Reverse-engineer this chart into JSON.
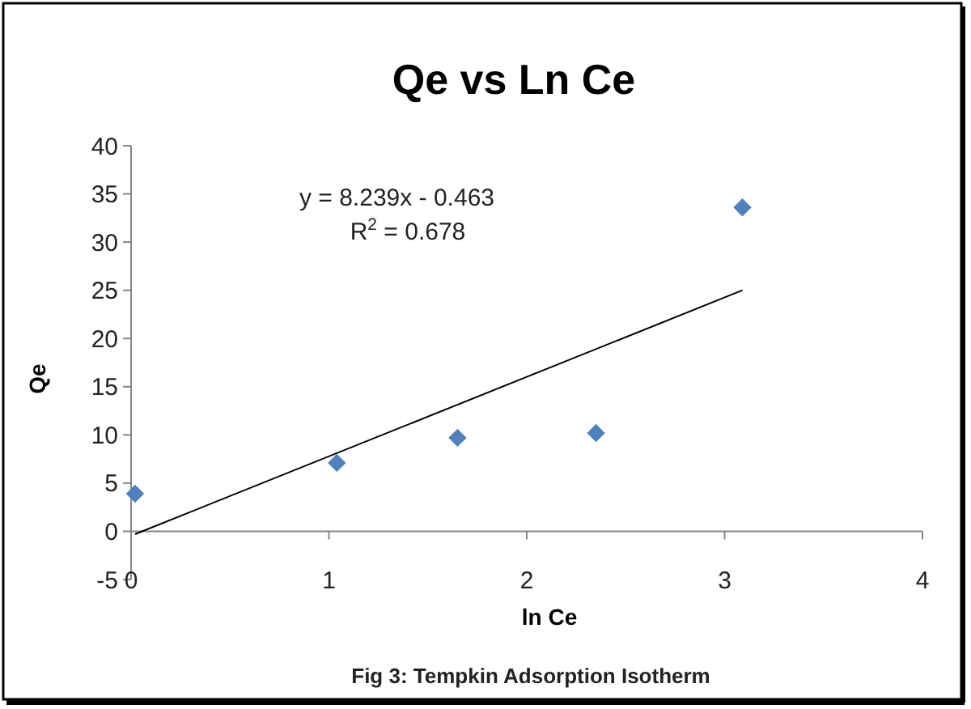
{
  "chart_data": {
    "type": "scatter",
    "title": "Qe vs Ln Ce",
    "xlabel": "ln Ce",
    "ylabel": "Qe",
    "annotations": [
      "y = 8.239x - 0.463",
      "R$^{2}$ = 0.678",
      "Fig 3: Tempkin Adsorption Isotherm"
    ],
    "xlim": [
      0,
      4
    ],
    "xticks": [
      0,
      1,
      2,
      3,
      4
    ],
    "ylim": [
      -5,
      40
    ],
    "yticks": [
      -5,
      0,
      5,
      10,
      15,
      20,
      25,
      30,
      35,
      40
    ],
    "grid": false,
    "marker": "diamond",
    "series": [
      {
        "color": "#4f81bd",
        "x": [
          0.02,
          1.04,
          1.65,
          2.35,
          3.09
        ],
        "values": [
          3.9,
          7.1,
          9.7,
          10.2,
          33.6
        ]
      },
      {
        "type": "line",
        "color": "#000000",
        "marker": "none",
        "line_style": "solid",
        "x": [
          0.02,
          3.09
        ],
        "values": [
          -0.3,
          25.0
        ]
      }
    ]
  }
}
